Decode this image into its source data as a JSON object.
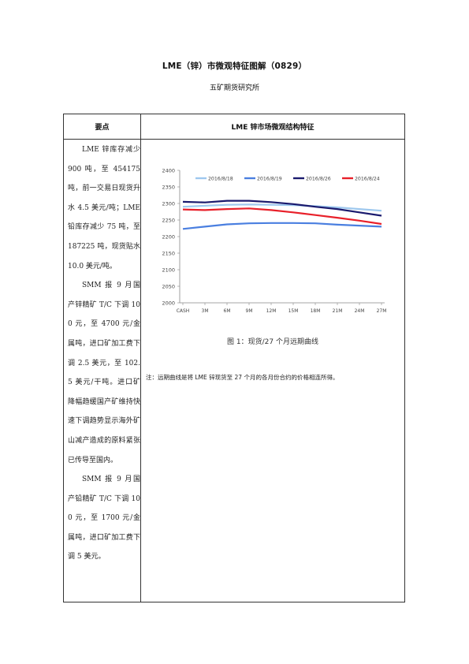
{
  "document": {
    "title": "LME（锌）市微观特征图解（0829）",
    "subtitle": "五矿期货研究所"
  },
  "table": {
    "header_left": "要点",
    "header_right": "LME 锌市场微观结构特征",
    "paragraphs": [
      "LME 锌库存减少 900 吨，至 454175 吨，前一交易日现货升水 4.5 美元/吨；LME 铅库存减少 75 吨，至 187225 吨，现货贴水 10.0 美元/吨。",
      "SMM 报 9 月国产锌精矿 T/C 下调 100 元，至 4700 元/金属吨，进口矿加工费下调 2.5 美元，至 102.5 美元/干吨。进口矿降幅趋缓国产矿维持快速下调趋势显示海外矿山减产造成的原料紧张已传导至国内。",
      "SMM 报 9 月国产铅精矿 T/C 下调 100 元，至 1700 元/金属吨，进口矿加工费下调 5 美元。"
    ],
    "figure_caption": "图 1：现货/27 个月远期曲线",
    "note": "注：远期曲线是将 LME 锌现货至 27 个月的各月份合约的价格相连所得。"
  },
  "chart_data": {
    "type": "line",
    "categories": [
      "CASH",
      "3M",
      "6M",
      "9M",
      "12M",
      "15M",
      "18M",
      "21M",
      "24M",
      "27M"
    ],
    "ylim": [
      2000,
      2400
    ],
    "yticks": [
      2000,
      2050,
      2100,
      2150,
      2200,
      2250,
      2300,
      2350,
      2400
    ],
    "grid": false,
    "legend": "top",
    "series": [
      {
        "name": "2016/8/18",
        "color": "#9ec8ee",
        "values": [
          2290,
          2293,
          2296,
          2297,
          2296,
          2295,
          2292,
          2288,
          2283,
          2278
        ]
      },
      {
        "name": "2016/8/19",
        "color": "#4a7fe0",
        "values": [
          2223,
          2230,
          2237,
          2240,
          2241,
          2241,
          2240,
          2236,
          2233,
          2230
        ]
      },
      {
        "name": "2016/8/26",
        "color": "#1a1a6e",
        "values": [
          2305,
          2303,
          2308,
          2308,
          2304,
          2298,
          2290,
          2283,
          2273,
          2263
        ]
      },
      {
        "name": "2016/8/24",
        "color": "#e8202a",
        "values": [
          2282,
          2280,
          2283,
          2285,
          2280,
          2273,
          2265,
          2257,
          2248,
          2238
        ]
      }
    ]
  }
}
